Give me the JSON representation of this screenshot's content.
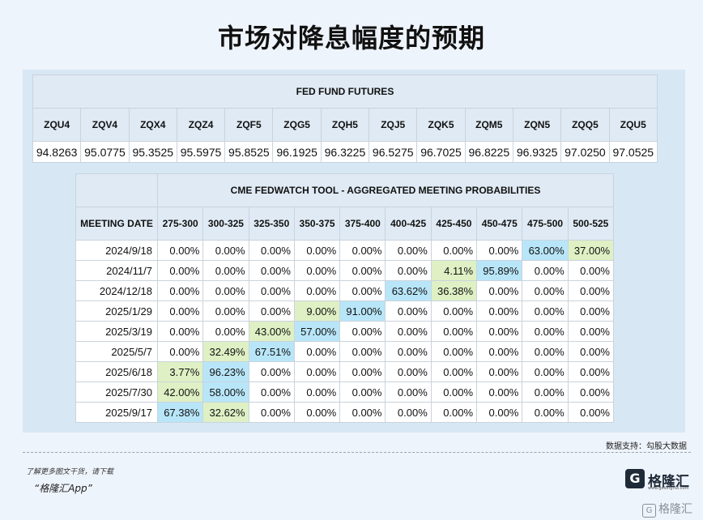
{
  "title": "市场对降息幅度的预期",
  "fed_futures": {
    "title": "FED FUND FUTURES",
    "headers": [
      "ZQU4",
      "ZQV4",
      "ZQX4",
      "ZQZ4",
      "ZQF5",
      "ZQG5",
      "ZQH5",
      "ZQJ5",
      "ZQK5",
      "ZQM5",
      "ZQN5",
      "ZQQ5",
      "ZQU5"
    ],
    "values": [
      "94.8263",
      "95.0775",
      "95.3525",
      "95.5975",
      "95.8525",
      "96.1925",
      "96.3225",
      "96.5275",
      "96.7025",
      "96.8225",
      "96.9325",
      "97.0250",
      "97.0525"
    ]
  },
  "cme": {
    "title": "CME FEDWATCH TOOL - AGGREGATED MEETING PROBABILITIES",
    "meeting_label": "MEETING DATE",
    "ranges": [
      "275-300",
      "300-325",
      "325-350",
      "350-375",
      "375-400",
      "400-425",
      "425-450",
      "450-475",
      "475-500",
      "500-525"
    ],
    "rows": [
      {
        "date": "2024/9/18",
        "p": [
          "0.00%",
          "0.00%",
          "0.00%",
          "0.00%",
          "0.00%",
          "0.00%",
          "0.00%",
          "0.00%",
          "63.00%",
          "37.00%"
        ]
      },
      {
        "date": "2024/11/7",
        "p": [
          "0.00%",
          "0.00%",
          "0.00%",
          "0.00%",
          "0.00%",
          "0.00%",
          "4.11%",
          "95.89%",
          "0.00%",
          "0.00%"
        ]
      },
      {
        "date": "2024/12/18",
        "p": [
          "0.00%",
          "0.00%",
          "0.00%",
          "0.00%",
          "0.00%",
          "63.62%",
          "36.38%",
          "0.00%",
          "0.00%",
          "0.00%"
        ]
      },
      {
        "date": "2025/1/29",
        "p": [
          "0.00%",
          "0.00%",
          "0.00%",
          "9.00%",
          "91.00%",
          "0.00%",
          "0.00%",
          "0.00%",
          "0.00%",
          "0.00%"
        ]
      },
      {
        "date": "2025/3/19",
        "p": [
          "0.00%",
          "0.00%",
          "43.00%",
          "57.00%",
          "0.00%",
          "0.00%",
          "0.00%",
          "0.00%",
          "0.00%",
          "0.00%"
        ]
      },
      {
        "date": "2025/5/7",
        "p": [
          "0.00%",
          "32.49%",
          "67.51%",
          "0.00%",
          "0.00%",
          "0.00%",
          "0.00%",
          "0.00%",
          "0.00%",
          "0.00%"
        ]
      },
      {
        "date": "2025/6/18",
        "p": [
          "3.77%",
          "96.23%",
          "0.00%",
          "0.00%",
          "0.00%",
          "0.00%",
          "0.00%",
          "0.00%",
          "0.00%",
          "0.00%"
        ]
      },
      {
        "date": "2025/7/30",
        "p": [
          "42.00%",
          "58.00%",
          "0.00%",
          "0.00%",
          "0.00%",
          "0.00%",
          "0.00%",
          "0.00%",
          "0.00%",
          "0.00%"
        ]
      },
      {
        "date": "2025/9/17",
        "p": [
          "67.38%",
          "32.62%",
          "0.00%",
          "0.00%",
          "0.00%",
          "0.00%",
          "0.00%",
          "0.00%",
          "0.00%",
          "0.00%"
        ]
      }
    ]
  },
  "source": "数据支持：勾股大数据",
  "promo_line1": "了解更多图文干货，请下载",
  "promo_line2": "“格隆汇App”",
  "logo_name": "格隆汇",
  "logo_url": "www.gelonghui.com",
  "watermark": "格隆汇",
  "colors": {
    "high_prob": "#b8e6f8",
    "low_prob": "#dff0c4",
    "header_bg": "#dfeaf4",
    "panel_bg": "#d7e7f4"
  }
}
